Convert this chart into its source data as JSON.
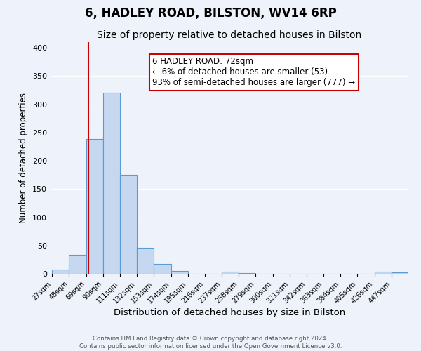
{
  "title": "6, HADLEY ROAD, BILSTON, WV14 6RP",
  "subtitle": "Size of property relative to detached houses in Bilston",
  "xlabel": "Distribution of detached houses by size in Bilston",
  "ylabel": "Number of detached properties",
  "bin_labels": [
    "27sqm",
    "48sqm",
    "69sqm",
    "90sqm",
    "111sqm",
    "132sqm",
    "153sqm",
    "174sqm",
    "195sqm",
    "216sqm",
    "237sqm",
    "258sqm",
    "279sqm",
    "300sqm",
    "321sqm",
    "342sqm",
    "363sqm",
    "384sqm",
    "405sqm",
    "426sqm",
    "447sqm"
  ],
  "bin_edges": [
    27,
    48,
    69,
    90,
    111,
    132,
    153,
    174,
    195,
    216,
    237,
    258,
    279,
    300,
    321,
    342,
    363,
    384,
    405,
    426,
    447,
    468
  ],
  "bar_values": [
    8,
    33,
    238,
    320,
    175,
    46,
    17,
    5,
    0,
    0,
    4,
    1,
    0,
    0,
    0,
    0,
    0,
    0,
    0,
    4,
    2
  ],
  "bar_color": "#c5d8f0",
  "bar_edge_color": "#5b9bd5",
  "property_value": 72,
  "vline_color": "#cc0000",
  "annotation_line1": "6 HADLEY ROAD: 72sqm",
  "annotation_line2": "← 6% of detached houses are smaller (53)",
  "annotation_line3": "93% of semi-detached houses are larger (777) →",
  "annotation_box_color": "white",
  "annotation_box_edge_color": "#cc0000",
  "ylim": [
    0,
    410
  ],
  "yticks": [
    0,
    50,
    100,
    150,
    200,
    250,
    300,
    350,
    400
  ],
  "background_color": "#eef2fb",
  "footer_line1": "Contains HM Land Registry data © Crown copyright and database right 2024.",
  "footer_line2": "Contains public sector information licensed under the Open Government Licence v3.0.",
  "title_fontsize": 12,
  "subtitle_fontsize": 10,
  "xlabel_fontsize": 9.5,
  "ylabel_fontsize": 8.5,
  "annotation_fontsize": 8.5
}
